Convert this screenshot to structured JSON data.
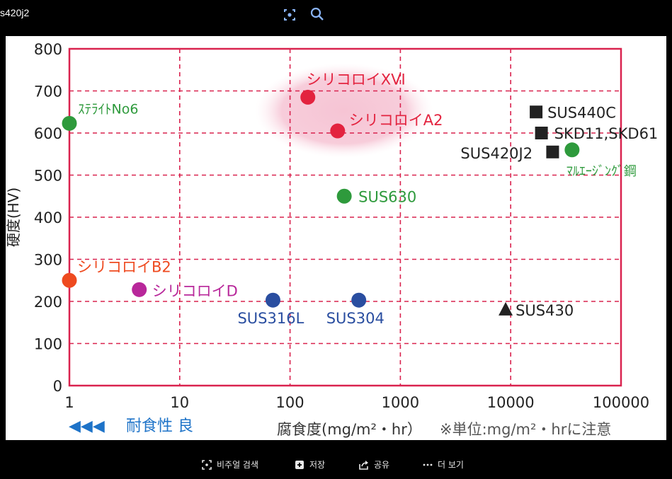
{
  "window": {
    "title": "s420j2"
  },
  "toolbar": {
    "lens_icon": "lens-icon",
    "search_icon": "search-icon"
  },
  "actions": [
    {
      "label": "비주얼 검색",
      "icon": "lens-icon"
    },
    {
      "label": "저장",
      "icon": "save-icon"
    },
    {
      "label": "공유",
      "icon": "share-icon"
    },
    {
      "label": "더 보기",
      "icon": "more-icon"
    }
  ],
  "colors": {
    "frame": "#d9234f",
    "green": "#2e9a3c",
    "red": "#e3233f",
    "orange": "#ee4a1f",
    "magenta": "#b8279a",
    "blue": "#2a4ea0",
    "black": "#222222",
    "highlight": "#f6c4d4"
  },
  "chart_data": {
    "type": "scatter",
    "ylabel": "硬度(HV)",
    "xlabel": "腐食度(mg/m²・hr）",
    "x_scale": "log",
    "xlim": [
      1,
      100000
    ],
    "ylim": [
      0,
      800
    ],
    "x_ticks": [
      "1",
      "10",
      "100",
      "1000",
      "10000",
      "100000"
    ],
    "y_ticks": [
      "0",
      "100",
      "200",
      "300",
      "400",
      "500",
      "600",
      "700",
      "800"
    ],
    "grid": true,
    "note": "※単位:mg/m²・hrに注意",
    "direction_label": "耐食性 良",
    "direction_arrows": "◀◀◀",
    "points": [
      {
        "name": "ｽﾃﾗｲﾄNo6",
        "x": 1,
        "y": 623,
        "marker": "circle",
        "color": "#2e9a3c"
      },
      {
        "name": "シリコロイXVI",
        "x": 145,
        "y": 685,
        "marker": "circle",
        "color": "#e3233f"
      },
      {
        "name": "シリコロイA2",
        "x": 270,
        "y": 605,
        "marker": "circle",
        "color": "#e3233f"
      },
      {
        "name": "SUS630",
        "x": 310,
        "y": 450,
        "marker": "circle",
        "color": "#2e9a3c"
      },
      {
        "name": "シリコロイB2",
        "x": 1,
        "y": 250,
        "marker": "circle",
        "color": "#ee4a1f"
      },
      {
        "name": "シリコロイD",
        "x": 4.3,
        "y": 228,
        "marker": "circle",
        "color": "#b8279a"
      },
      {
        "name": "SUS316L",
        "x": 70,
        "y": 203,
        "marker": "circle",
        "color": "#2a4ea0"
      },
      {
        "name": "SUS304",
        "x": 420,
        "y": 203,
        "marker": "circle",
        "color": "#2a4ea0"
      },
      {
        "name": "SUS440C",
        "x": 17000,
        "y": 650,
        "marker": "square",
        "color": "#222222"
      },
      {
        "name": "SKD11,SKD61",
        "x": 19000,
        "y": 600,
        "marker": "square",
        "color": "#222222"
      },
      {
        "name": "SUS420J2",
        "x": 24000,
        "y": 555,
        "marker": "square",
        "color": "#222222"
      },
      {
        "name": "ﾏﾙｴｰｼﾞﾝｸﾞ鋼",
        "x": 36000,
        "y": 560,
        "marker": "circle",
        "color": "#2e9a3c"
      },
      {
        "name": "SUS430",
        "x": 9000,
        "y": 180,
        "marker": "triangle",
        "color": "#222222"
      }
    ],
    "highlight_group": [
      "シリコロイXVI",
      "シリコロイA2"
    ]
  }
}
